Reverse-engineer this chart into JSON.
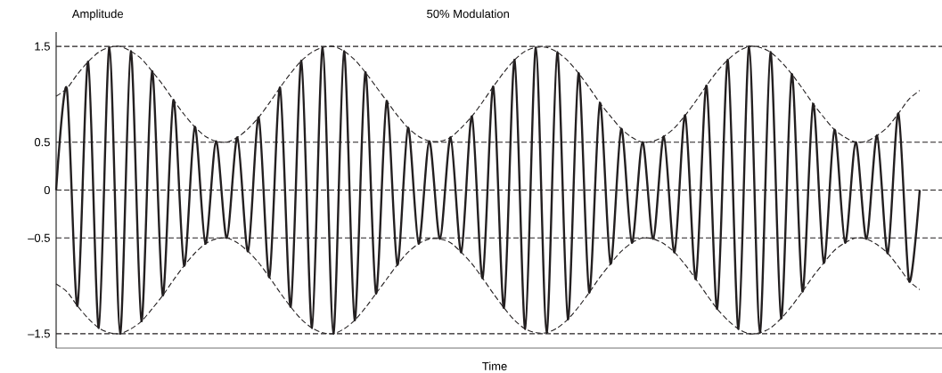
{
  "chart_data": {
    "type": "line",
    "title": "50% Modulation",
    "xlabel": "Time",
    "ylabel": "Amplitude",
    "categories": [
      null,
      null,
      null,
      null,
      null,
      null,
      null,
      null,
      null,
      null,
      null,
      null,
      null,
      null,
      null,
      null,
      null,
      null,
      null,
      null,
      null,
      null,
      null,
      null,
      null,
      null,
      null,
      null,
      null,
      null,
      null,
      null,
      null,
      null,
      null,
      null,
      null,
      null,
      null,
      null,
      null,
      null,
      null,
      null,
      null,
      null,
      null,
      null,
      null,
      null,
      null,
      null,
      null,
      null,
      null,
      null,
      null,
      null,
      null,
      null,
      null,
      null,
      null,
      null,
      null,
      null,
      null,
      null,
      null,
      null,
      null,
      null,
      null,
      null,
      null,
      null,
      null,
      null,
      null,
      null,
      null,
      null
    ],
    "series": [
      {
        "color": "#231f20",
        "line_style": "solid",
        "values": [
          0,
          1.06,
          -1.21,
          1.34,
          -1.44,
          1.49,
          -1.5,
          1.45,
          -1.37,
          1.24,
          -1.1,
          0.94,
          -0.79,
          0.66,
          -0.56,
          0.51,
          -0.5,
          0.55,
          -0.64,
          0.76,
          -0.91,
          1.07,
          -1.22,
          1.35,
          -1.44,
          1.49,
          -1.5,
          1.45,
          -1.36,
          1.23,
          -1.08,
          0.93,
          -0.78,
          0.65,
          -0.56,
          0.51,
          -0.51,
          0.55,
          -0.65,
          0.77,
          -0.92,
          1.08,
          -1.23,
          1.36,
          -1.45,
          1.49,
          -1.49,
          1.44,
          -1.35,
          1.22,
          -1.07,
          0.91,
          -0.77,
          0.64,
          -0.55,
          0.5,
          -0.51,
          0.56,
          -0.65,
          0.78,
          -0.93,
          1.09,
          -1.24,
          1.36,
          -1.45,
          1.5,
          -1.49,
          1.44,
          -1.34,
          1.21,
          -1.06,
          0.9,
          -0.76,
          0.63,
          -0.55,
          0.5,
          -0.51,
          0.57,
          -0.66,
          0.8,
          -0.95,
          0
        ]
      },
      {
        "color": "#231f20",
        "line_style": "dashed",
        "values": [
          0.98,
          1.06,
          1.21,
          1.34,
          1.44,
          1.49,
          1.5,
          1.45,
          1.37,
          1.24,
          1.1,
          0.94,
          0.79,
          0.66,
          0.56,
          0.51,
          0.5,
          0.55,
          0.64,
          0.76,
          0.91,
          1.07,
          1.22,
          1.35,
          1.44,
          1.49,
          1.5,
          1.45,
          1.36,
          1.23,
          1.08,
          0.93,
          0.78,
          0.65,
          0.56,
          0.51,
          0.51,
          0.55,
          0.65,
          0.77,
          0.92,
          1.08,
          1.23,
          1.36,
          1.45,
          1.49,
          1.49,
          1.44,
          1.35,
          1.22,
          1.07,
          0.91,
          0.77,
          0.64,
          0.55,
          0.5,
          0.51,
          0.56,
          0.65,
          0.78,
          0.93,
          1.09,
          1.24,
          1.36,
          1.45,
          1.5,
          1.49,
          1.44,
          1.34,
          1.21,
          1.06,
          0.9,
          0.76,
          0.63,
          0.55,
          0.5,
          0.51,
          0.57,
          0.66,
          0.8,
          0.95,
          1.04
        ]
      },
      {
        "color": "#231f20",
        "line_style": "dashed",
        "values": [
          -0.98,
          -1.06,
          -1.21,
          -1.34,
          -1.44,
          -1.49,
          -1.5,
          -1.45,
          -1.37,
          -1.24,
          -1.1,
          -0.94,
          -0.79,
          -0.66,
          -0.56,
          -0.51,
          -0.5,
          -0.55,
          -0.64,
          -0.76,
          -0.91,
          -1.07,
          -1.22,
          -1.35,
          -1.44,
          -1.49,
          -1.5,
          -1.45,
          -1.36,
          -1.23,
          -1.08,
          -0.93,
          -0.78,
          -0.65,
          -0.56,
          -0.51,
          -0.51,
          -0.55,
          -0.65,
          -0.77,
          -0.92,
          -1.08,
          -1.23,
          -1.36,
          -1.45,
          -1.49,
          -1.49,
          -1.44,
          -1.35,
          -1.22,
          -1.07,
          -0.91,
          -0.77,
          -0.64,
          -0.55,
          -0.5,
          -0.51,
          -0.56,
          -0.65,
          -0.78,
          -0.93,
          -1.09,
          -1.24,
          -1.36,
          -1.45,
          -1.5,
          -1.49,
          -1.44,
          -1.34,
          -1.21,
          -1.06,
          -0.9,
          -0.76,
          -0.63,
          -0.55,
          -0.5,
          -0.51,
          -0.57,
          -0.66,
          -0.8,
          -0.95,
          -1.04
        ]
      }
    ],
    "ylim": [
      -1.65,
      1.65
    ],
    "yticks": [
      1.5,
      0.5,
      0,
      {
        "value": -0.5,
        "label": "–0.5"
      },
      {
        "value": -1.5,
        "label": "–1.5"
      }
    ],
    "ref_lines": [
      {
        "axis": "y",
        "value": 1.5,
        "color": "#231f20",
        "line_style": "dashed"
      },
      {
        "axis": "y",
        "value": 0.5,
        "color": "#231f20",
        "line_style": "dashed"
      },
      {
        "axis": "y",
        "value": 0,
        "color": "#231f20",
        "line_style": "dashed"
      },
      {
        "axis": "y",
        "value": -0.5,
        "color": "#231f20",
        "line_style": "dashed"
      },
      {
        "axis": "y",
        "value": -1.5,
        "color": "#231f20",
        "line_style": "dashed"
      }
    ],
    "tick_labels": "y",
    "grid": false,
    "marker": "none"
  }
}
